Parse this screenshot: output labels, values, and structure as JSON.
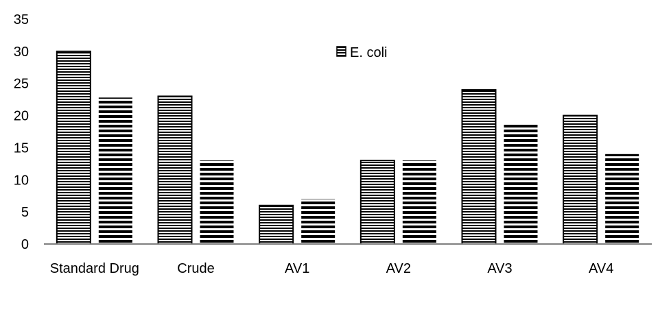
{
  "chart_data": {
    "type": "bar",
    "title": "",
    "xlabel": "",
    "ylabel": "",
    "categories": [
      "Standard Drug",
      "Crude",
      "AV1",
      "AV2",
      "AV3",
      "AV4"
    ],
    "series": [
      {
        "name": "E. coli",
        "values": [
          30,
          23,
          6,
          13,
          24,
          20
        ],
        "pattern": "thin-horizontal",
        "outlined": true
      },
      {
        "values": [
          22.8,
          13,
          7,
          13,
          18.8,
          14
        ],
        "pattern": "thick-horizontal",
        "outlined": false
      }
    ],
    "ylim": [
      0,
      35
    ],
    "yticks": [
      0,
      5,
      10,
      15,
      20,
      25,
      30,
      35
    ],
    "grid": false,
    "legend_position": "top-center",
    "colors": {
      "bar": "#000000",
      "background": "#ffffff",
      "axis": "#7f7f7f"
    }
  }
}
